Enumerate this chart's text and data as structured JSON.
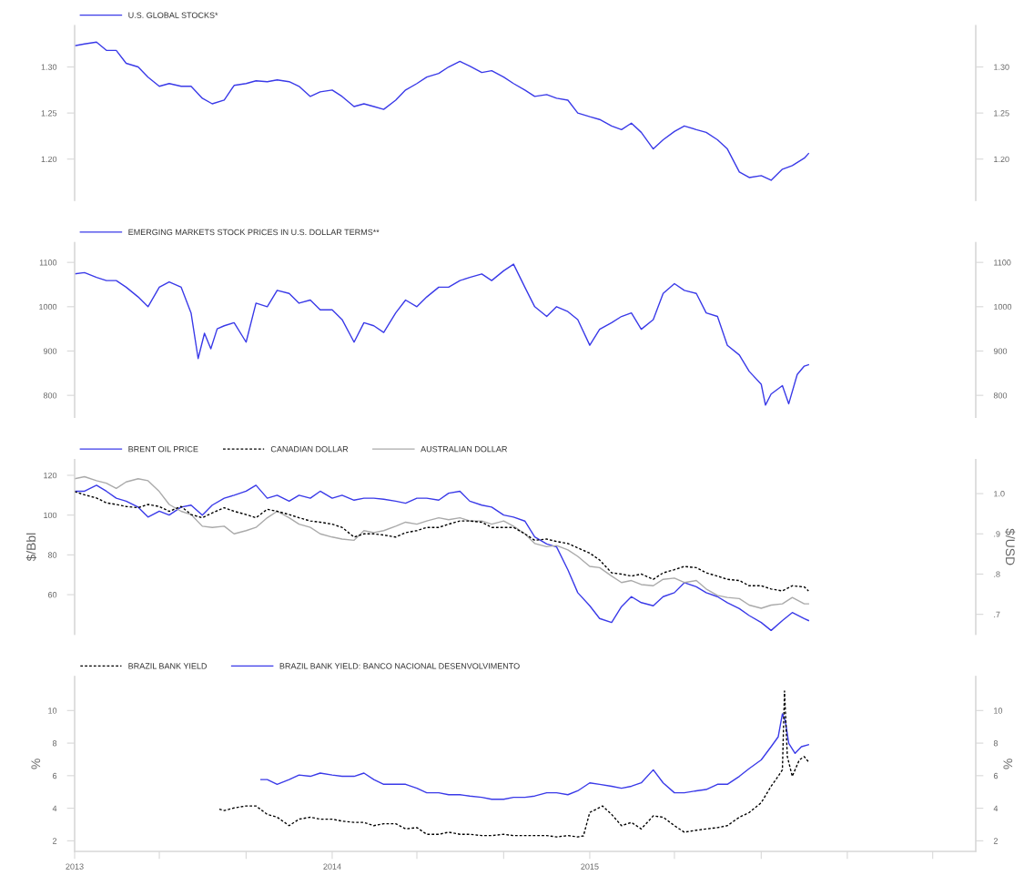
{
  "chart_data": [
    {
      "type": "line",
      "legend": "top left",
      "tick_labels": "y",
      "xlim": [
        "2013-01-01",
        "2016-07-01"
      ],
      "x": [
        "2013-01-01",
        "2013-01-15",
        "2013-02-01",
        "2013-02-15",
        "2013-03-01",
        "2013-03-15",
        "2013-04-01",
        "2013-04-15",
        "2013-05-01",
        "2013-05-15",
        "2013-06-01",
        "2013-06-15",
        "2013-07-01",
        "2013-07-15",
        "2013-08-01",
        "2013-08-15",
        "2013-09-01",
        "2013-09-15",
        "2013-10-01",
        "2013-10-15",
        "2013-11-01",
        "2013-11-15",
        "2013-12-01",
        "2013-12-15",
        "2014-01-01",
        "2014-01-15",
        "2014-02-01",
        "2014-02-15",
        "2014-03-01",
        "2014-03-15",
        "2014-04-01",
        "2014-04-15",
        "2014-05-01",
        "2014-05-15",
        "2014-06-01",
        "2014-06-15",
        "2014-07-01",
        "2014-07-15",
        "2014-08-01",
        "2014-08-15",
        "2014-09-01",
        "2014-09-15",
        "2014-10-01",
        "2014-10-15",
        "2014-11-01",
        "2014-11-15",
        "2014-12-01",
        "2014-12-15",
        "2015-01-01",
        "2015-01-15",
        "2015-02-01",
        "2015-02-15",
        "2015-03-01",
        "2015-03-15",
        "2015-04-01",
        "2015-04-15",
        "2015-05-01",
        "2015-05-15",
        "2015-06-01",
        "2015-06-15",
        "2015-07-01",
        "2015-07-15",
        "2015-08-01",
        "2015-08-15",
        "2015-09-01",
        "2015-09-15",
        "2015-10-01",
        "2015-10-15",
        "2015-11-01",
        "2015-11-07"
      ],
      "series": [
        {
          "name": "U.S. GLOBAL STOCKS*",
          "color": "#3a3ae8",
          "line_style": "solid",
          "values": [
            1.323,
            1.325,
            1.327,
            1.318,
            1.318,
            1.304,
            1.3,
            1.289,
            1.279,
            1.282,
            1.279,
            1.279,
            1.266,
            1.26,
            1.264,
            1.28,
            1.282,
            1.285,
            1.284,
            1.286,
            1.284,
            1.279,
            1.268,
            1.273,
            1.275,
            1.268,
            1.257,
            1.26,
            1.257,
            1.254,
            1.264,
            1.275,
            1.282,
            1.289,
            1.293,
            1.3,
            1.306,
            1.301,
            1.294,
            1.296,
            1.289,
            1.282,
            1.275,
            1.268,
            1.27,
            1.266,
            1.264,
            1.25,
            1.246,
            1.243,
            1.236,
            1.232,
            1.239,
            1.229,
            1.211,
            1.221,
            1.23,
            1.236,
            1.232,
            1.229,
            1.221,
            1.211,
            1.186,
            1.18,
            1.182,
            1.177,
            1.189,
            1.193,
            1.201,
            1.206
          ]
        }
      ],
      "ylim": [
        1.155,
        1.345
      ],
      "yticks": [
        {
          "value": 1.2,
          "label": "1.20"
        },
        {
          "value": 1.25,
          "label": "1.25"
        },
        {
          "value": 1.3,
          "label": "1.30"
        }
      ],
      "y2lim": [
        1.155,
        1.345
      ],
      "y2ticks": [
        {
          "value": 1.2,
          "label": "1.20"
        },
        {
          "value": 1.25,
          "label": "1.25"
        },
        {
          "value": 1.3,
          "label": "1.30"
        }
      ]
    },
    {
      "type": "line",
      "legend": "top left",
      "tick_labels": "y",
      "xlim": [
        "2013-01-01",
        "2016-07-01"
      ],
      "series": [
        {
          "name": "EMERGING MARKETS STOCK PRICES IN U.S. DOLLAR TERMS**",
          "color": "#3a3ae8",
          "line_style": "solid",
          "x": [
            "2013-01-01",
            "2013-01-15",
            "2013-02-01",
            "2013-02-15",
            "2013-03-01",
            "2013-03-15",
            "2013-04-01",
            "2013-04-15",
            "2013-05-01",
            "2013-05-15",
            "2013-06-01",
            "2013-06-15",
            "2013-06-25",
            "2013-07-04",
            "2013-07-13",
            "2013-07-22",
            "2013-08-01",
            "2013-08-15",
            "2013-09-01",
            "2013-09-15",
            "2013-10-01",
            "2013-10-15",
            "2013-11-01",
            "2013-11-15",
            "2013-12-01",
            "2013-12-15",
            "2014-01-01",
            "2014-01-15",
            "2014-02-01",
            "2014-02-15",
            "2014-03-01",
            "2014-03-15",
            "2014-04-01",
            "2014-04-15",
            "2014-05-01",
            "2014-05-15",
            "2014-06-01",
            "2014-06-15",
            "2014-07-01",
            "2014-07-15",
            "2014-08-01",
            "2014-08-15",
            "2014-09-01",
            "2014-09-15",
            "2014-10-01",
            "2014-10-15",
            "2014-11-01",
            "2014-11-15",
            "2014-12-01",
            "2014-12-15",
            "2015-01-01",
            "2015-01-15",
            "2015-02-01",
            "2015-02-15",
            "2015-03-01",
            "2015-03-15",
            "2015-04-01",
            "2015-04-15",
            "2015-05-01",
            "2015-05-15",
            "2015-06-01",
            "2015-06-15",
            "2015-07-01",
            "2015-07-15",
            "2015-08-01",
            "2015-08-15",
            "2015-09-01",
            "2015-09-07",
            "2015-09-15",
            "2015-10-01",
            "2015-10-10",
            "2015-10-22",
            "2015-11-01",
            "2015-11-07"
          ],
          "values": [
            1074,
            1077,
            1066,
            1059,
            1059,
            1044,
            1022,
            1000,
            1044,
            1056,
            1044,
            986,
            883,
            940,
            905,
            950,
            957,
            964,
            920,
            1008,
            1000,
            1037,
            1030,
            1008,
            1015,
            993,
            993,
            971,
            920,
            964,
            957,
            942,
            986,
            1015,
            1000,
            1022,
            1044,
            1044,
            1059,
            1066,
            1074,
            1059,
            1081,
            1096,
            1044,
            1000,
            978,
            1000,
            989,
            971,
            913,
            949,
            964,
            978,
            986,
            949,
            971,
            1030,
            1052,
            1037,
            1030,
            986,
            978,
            913,
            891,
            854,
            825,
            778,
            803,
            822,
            781,
            847,
            866,
            869
          ]
        }
      ],
      "ylim": [
        750,
        1145
      ],
      "yticks": [
        800,
        900,
        1000,
        1100
      ],
      "y2lim": [
        750,
        1145
      ],
      "y2ticks": [
        800,
        900,
        1000,
        1100
      ]
    },
    {
      "type": "line",
      "legend": "top left",
      "tick_labels": "y",
      "xlim": [
        "2013-01-01",
        "2016-07-01"
      ],
      "ylabel": "$/Bbl",
      "y2label": "$/USD",
      "x": [
        "2013-01-01",
        "2013-01-15",
        "2013-02-01",
        "2013-02-15",
        "2013-03-01",
        "2013-03-15",
        "2013-04-01",
        "2013-04-15",
        "2013-05-01",
        "2013-05-15",
        "2013-06-01",
        "2013-06-15",
        "2013-07-01",
        "2013-07-15",
        "2013-08-01",
        "2013-08-15",
        "2013-09-01",
        "2013-09-15",
        "2013-10-01",
        "2013-10-15",
        "2013-11-01",
        "2013-11-15",
        "2013-12-01",
        "2013-12-15",
        "2014-01-01",
        "2014-01-15",
        "2014-02-01",
        "2014-02-15",
        "2014-03-01",
        "2014-03-15",
        "2014-04-01",
        "2014-04-15",
        "2014-05-01",
        "2014-05-15",
        "2014-06-01",
        "2014-06-15",
        "2014-07-01",
        "2014-07-15",
        "2014-08-01",
        "2014-08-15",
        "2014-09-01",
        "2014-09-15",
        "2014-10-01",
        "2014-10-15",
        "2014-11-01",
        "2014-11-15",
        "2014-12-01",
        "2014-12-15",
        "2015-01-01",
        "2015-01-15",
        "2015-02-01",
        "2015-02-15",
        "2015-03-01",
        "2015-03-15",
        "2015-04-01",
        "2015-04-15",
        "2015-05-01",
        "2015-05-15",
        "2015-06-01",
        "2015-06-15",
        "2015-07-01",
        "2015-07-15",
        "2015-08-01",
        "2015-08-15",
        "2015-09-01",
        "2015-09-15",
        "2015-10-01",
        "2015-10-15",
        "2015-11-01",
        "2015-11-07"
      ],
      "series": [
        {
          "name": "AUSTRALIAN DOLLAR",
          "color": "#aaaaaa",
          "line_style": "solid",
          "axis": "y2",
          "values": [
            1.037,
            1.042,
            1.032,
            1.026,
            1.013,
            1.029,
            1.037,
            1.032,
            1.005,
            0.973,
            0.956,
            0.948,
            0.919,
            0.916,
            0.919,
            0.9,
            0.908,
            0.916,
            0.94,
            0.956,
            0.94,
            0.924,
            0.916,
            0.9,
            0.892,
            0.887,
            0.884,
            0.908,
            0.903,
            0.908,
            0.919,
            0.929,
            0.924,
            0.932,
            0.94,
            0.935,
            0.94,
            0.932,
            0.932,
            0.924,
            0.932,
            0.919,
            0.9,
            0.876,
            0.868,
            0.871,
            0.86,
            0.844,
            0.819,
            0.816,
            0.795,
            0.779,
            0.784,
            0.774,
            0.771,
            0.787,
            0.79,
            0.779,
            0.784,
            0.763,
            0.747,
            0.742,
            0.739,
            0.723,
            0.715,
            0.723,
            0.726,
            0.742,
            0.726,
            0.726
          ]
        },
        {
          "name": "CANADIAN DOLLAR",
          "color": "#000000",
          "line_style": "dashed",
          "axis": "y2",
          "values": [
            1.005,
            0.997,
            0.989,
            0.977,
            0.973,
            0.968,
            0.965,
            0.973,
            0.968,
            0.956,
            0.968,
            0.948,
            0.94,
            0.952,
            0.965,
            0.956,
            0.948,
            0.94,
            0.961,
            0.956,
            0.948,
            0.94,
            0.932,
            0.929,
            0.924,
            0.916,
            0.892,
            0.9,
            0.9,
            0.897,
            0.892,
            0.903,
            0.908,
            0.916,
            0.916,
            0.924,
            0.932,
            0.932,
            0.929,
            0.916,
            0.916,
            0.916,
            0.9,
            0.884,
            0.887,
            0.881,
            0.876,
            0.865,
            0.852,
            0.835,
            0.803,
            0.8,
            0.795,
            0.8,
            0.787,
            0.803,
            0.811,
            0.819,
            0.816,
            0.803,
            0.795,
            0.787,
            0.784,
            0.771,
            0.771,
            0.763,
            0.758,
            0.771,
            0.768,
            0.758
          ]
        },
        {
          "name": "BRENT OIL PRICE",
          "color": "#3a3ae8",
          "line_style": "solid",
          "values": [
            112,
            112,
            115,
            112,
            108.5,
            107,
            104,
            99,
            102,
            100,
            104,
            105,
            100,
            105,
            108.5,
            110,
            112,
            115,
            108.5,
            110,
            107,
            110,
            108.5,
            112,
            108.5,
            110,
            107.5,
            108.5,
            108.5,
            108,
            107,
            106,
            108.5,
            108.5,
            107.5,
            111,
            112,
            107,
            105,
            104,
            100,
            99,
            97,
            89,
            85.5,
            84,
            72.5,
            61,
            54.4,
            48,
            46,
            54,
            59,
            56,
            54.4,
            59,
            61,
            66,
            64,
            61,
            59,
            56,
            53,
            49.5,
            46,
            42,
            47,
            51,
            48,
            47
          ]
        }
      ],
      "ylim": [
        40,
        128
      ],
      "yticks": [
        60,
        80,
        100,
        120
      ],
      "y2lim": [
        0.65,
        1.085
      ],
      "y2ticks": [
        {
          "value": 0.7,
          "label": ".7"
        },
        {
          "value": 0.8,
          "label": ".8"
        },
        {
          "value": 0.9,
          "label": ".9"
        },
        {
          "value": 1.0,
          "label": "1.0"
        }
      ]
    },
    {
      "type": "line",
      "legend": "top left",
      "xlim": [
        "2013-01-01",
        "2016-07-01"
      ],
      "ylabel": "%",
      "y2label": "%",
      "xticks": [
        {
          "value": "2013-01-01",
          "label": "2013"
        },
        {
          "value": "2013-05-01",
          "label": null
        },
        {
          "value": "2013-09-01",
          "label": null
        },
        {
          "value": "2014-01-01",
          "label": "2014"
        },
        {
          "value": "2014-05-01",
          "label": null
        },
        {
          "value": "2014-09-01",
          "label": null
        },
        {
          "value": "2015-01-01",
          "label": "2015"
        },
        {
          "value": "2015-05-01",
          "label": null
        },
        {
          "value": "2015-09-01",
          "label": null
        },
        {
          "value": "2016-01-01",
          "label": null
        },
        {
          "value": "2016-05-01",
          "label": null
        }
      ],
      "series": [
        {
          "name": "BRAZIL BANK YIELD: BANCO NACIONAL DESENVOLVIMENTO",
          "color": "#3a3ae8",
          "line_style": "solid",
          "x": [
            "2013-09-22",
            "2013-10-01",
            "2013-10-15",
            "2013-11-01",
            "2013-11-15",
            "2013-12-01",
            "2013-12-15",
            "2014-01-01",
            "2014-01-15",
            "2014-02-01",
            "2014-02-15",
            "2014-03-01",
            "2014-03-15",
            "2014-04-01",
            "2014-04-15",
            "2014-05-01",
            "2014-05-15",
            "2014-06-01",
            "2014-06-15",
            "2014-07-01",
            "2014-07-15",
            "2014-08-01",
            "2014-08-15",
            "2014-09-01",
            "2014-09-15",
            "2014-10-01",
            "2014-10-15",
            "2014-11-01",
            "2014-11-15",
            "2014-12-01",
            "2014-12-15",
            "2015-01-01",
            "2015-01-15",
            "2015-02-01",
            "2015-02-15",
            "2015-03-01",
            "2015-03-15",
            "2015-04-01",
            "2015-04-15",
            "2015-05-01",
            "2015-05-15",
            "2015-06-01",
            "2015-06-15",
            "2015-07-01",
            "2015-07-15",
            "2015-08-01",
            "2015-08-15",
            "2015-09-01",
            "2015-09-15",
            "2015-09-25",
            "2015-10-01",
            "2015-10-05",
            "2015-10-10",
            "2015-10-19",
            "2015-10-28",
            "2015-11-07"
          ],
          "values": [
            5.76,
            5.76,
            5.47,
            5.76,
            6.04,
            5.96,
            6.16,
            6.04,
            5.96,
            5.96,
            6.16,
            5.76,
            5.47,
            5.47,
            5.47,
            5.23,
            4.95,
            4.95,
            4.83,
            4.83,
            4.75,
            4.67,
            4.55,
            4.55,
            4.67,
            4.67,
            4.75,
            4.95,
            4.95,
            4.83,
            5.07,
            5.56,
            5.47,
            5.35,
            5.23,
            5.35,
            5.56,
            6.36,
            5.56,
            4.95,
            4.95,
            5.07,
            5.15,
            5.47,
            5.47,
            5.96,
            6.44,
            6.97,
            7.78,
            8.38,
            9.8,
            9.39,
            7.98,
            7.37,
            7.78,
            7.9
          ]
        },
        {
          "name": "BRAZIL BANK YIELD",
          "color": "#000000",
          "line_style": "dashed",
          "x": [
            "2013-07-25",
            "2013-08-01",
            "2013-08-15",
            "2013-09-01",
            "2013-09-15",
            "2013-10-01",
            "2013-10-15",
            "2013-11-01",
            "2013-11-15",
            "2013-12-01",
            "2013-12-15",
            "2014-01-01",
            "2014-01-15",
            "2014-02-01",
            "2014-02-15",
            "2014-03-01",
            "2014-03-15",
            "2014-04-01",
            "2014-04-15",
            "2014-05-01",
            "2014-05-15",
            "2014-06-01",
            "2014-06-15",
            "2014-07-01",
            "2014-07-15",
            "2014-08-01",
            "2014-08-15",
            "2014-09-01",
            "2014-09-15",
            "2014-10-01",
            "2014-10-15",
            "2014-11-01",
            "2014-11-15",
            "2014-12-01",
            "2014-12-15",
            "2014-12-23",
            "2015-01-01",
            "2015-01-10",
            "2015-01-19",
            "2015-02-01",
            "2015-02-15",
            "2015-03-01",
            "2015-03-15",
            "2015-04-01",
            "2015-04-15",
            "2015-05-01",
            "2015-05-15",
            "2015-06-01",
            "2015-06-15",
            "2015-07-01",
            "2015-07-15",
            "2015-08-01",
            "2015-08-15",
            "2015-09-01",
            "2015-09-15",
            "2015-09-25",
            "2015-10-01",
            "2015-10-04",
            "2015-10-08",
            "2015-10-15",
            "2015-10-25",
            "2015-11-01",
            "2015-11-07"
          ],
          "values": [
            3.94,
            3.86,
            4.02,
            4.14,
            4.14,
            3.62,
            3.45,
            2.93,
            3.33,
            3.45,
            3.33,
            3.33,
            3.21,
            3.13,
            3.13,
            2.93,
            3.05,
            3.05,
            2.73,
            2.81,
            2.4,
            2.4,
            2.53,
            2.4,
            2.4,
            2.32,
            2.32,
            2.4,
            2.32,
            2.32,
            2.32,
            2.32,
            2.24,
            2.32,
            2.24,
            2.3,
            3.74,
            3.94,
            4.14,
            3.62,
            2.93,
            3.13,
            2.73,
            3.53,
            3.45,
            2.93,
            2.53,
            2.65,
            2.73,
            2.81,
            2.93,
            3.45,
            3.74,
            4.34,
            5.35,
            5.96,
            6.36,
            11.2,
            7.17,
            5.96,
            6.97,
            7.17,
            6.85
          ]
        }
      ],
      "ylim": [
        1.35,
        12.1
      ],
      "yticks": [
        2,
        4,
        6,
        8,
        10
      ],
      "y2lim": [
        1.35,
        12.1
      ],
      "y2ticks": [
        2,
        4,
        6,
        8,
        10
      ]
    }
  ]
}
